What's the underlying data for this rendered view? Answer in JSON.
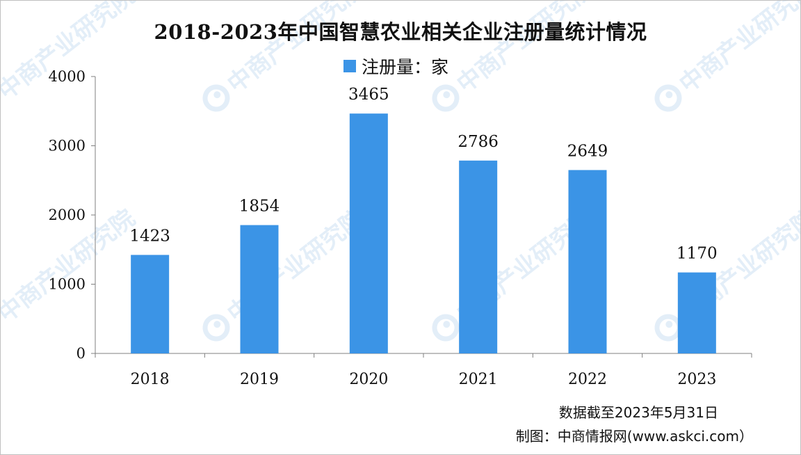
{
  "chart_data": {
    "type": "bar",
    "title": "2018-2023年中国智慧农业相关企业注册量统计情况",
    "categories": [
      "2018",
      "2019",
      "2020",
      "2021",
      "2022",
      "2023"
    ],
    "series": [
      {
        "name": "注册量：家",
        "values": [
          1423,
          1854,
          3465,
          2786,
          2649,
          1170
        ]
      }
    ],
    "ylim": [
      0,
      4000
    ],
    "yticks": [
      0,
      1000,
      2000,
      3000,
      4000
    ],
    "grid": false,
    "legend": "top-center",
    "data_labels": true
  },
  "colors": {
    "bar": "#3b94e6",
    "axis": "#7f7f7f",
    "watermark": "#e3eef8"
  },
  "notes": {
    "date_note": "数据截至2023年5月31日",
    "source_note": "制图：中商情报网(www.askci.com）"
  },
  "watermark": {
    "text": "中商产业研究院",
    "icon": "askci-logo-icon"
  }
}
